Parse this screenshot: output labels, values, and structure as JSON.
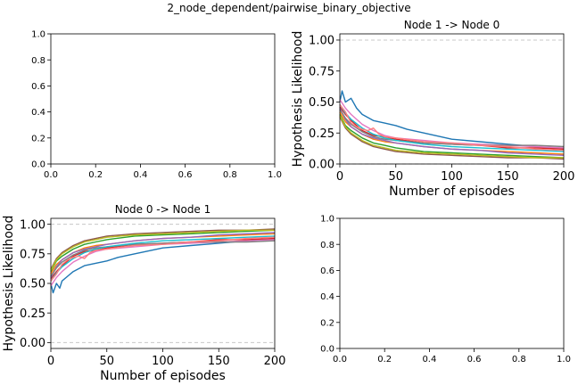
{
  "figure": {
    "suptitle": "2_node_dependent/pairwise_binary_objective"
  },
  "chart_data": [
    {
      "id": "top-left",
      "type": "line",
      "title": "",
      "xlabel": "",
      "ylabel": "",
      "xlim": [
        0,
        1
      ],
      "ylim": [
        0,
        1
      ],
      "xticks": [
        0.0,
        0.2,
        0.4,
        0.6,
        0.8,
        1.0
      ],
      "xtick_labels": [
        "0.0",
        "0.2",
        "0.4",
        "0.6",
        "0.8",
        "1.0"
      ],
      "yticks": [
        0.0,
        0.2,
        0.4,
        0.6,
        0.8,
        1.0
      ],
      "ytick_labels": [
        "0.0",
        "0.2",
        "0.4",
        "0.6",
        "0.8",
        "1.0"
      ],
      "label_size": "small",
      "series": []
    },
    {
      "id": "top-right",
      "type": "line",
      "title": "Node 1 -> Node 0",
      "xlabel": "Number of episodes",
      "ylabel": "Hypothesis Likelihood",
      "xlim": [
        0,
        200
      ],
      "ylim": [
        0,
        1.05
      ],
      "xticks": [
        0,
        50,
        100,
        150,
        200
      ],
      "xtick_labels": [
        "0",
        "50",
        "100",
        "150",
        "200"
      ],
      "yticks": [
        0,
        0.25,
        0.5,
        0.75,
        1.0
      ],
      "ytick_labels": [
        "0.00",
        "0.25",
        "0.50",
        "0.75",
        "1.00"
      ],
      "hlines": [
        0,
        1
      ],
      "label_size": "large",
      "series": [
        {
          "color": "#1f77b4",
          "x": [
            0,
            2,
            5,
            10,
            15,
            20,
            30,
            40,
            50,
            60,
            75,
            100,
            125,
            150,
            175,
            200
          ],
          "y": [
            0.5,
            0.59,
            0.5,
            0.53,
            0.45,
            0.4,
            0.35,
            0.33,
            0.31,
            0.28,
            0.25,
            0.2,
            0.18,
            0.16,
            0.14,
            0.12
          ]
        },
        {
          "color": "#ff7f0e",
          "x": [
            0,
            5,
            10,
            20,
            30,
            40,
            50,
            75,
            100,
            125,
            150,
            175,
            200
          ],
          "y": [
            0.42,
            0.34,
            0.3,
            0.24,
            0.2,
            0.18,
            0.17,
            0.14,
            0.12,
            0.11,
            0.1,
            0.09,
            0.08
          ]
        },
        {
          "color": "#2ca02c",
          "x": [
            0,
            5,
            10,
            20,
            30,
            40,
            50,
            75,
            100,
            125,
            150,
            175,
            200
          ],
          "y": [
            0.4,
            0.31,
            0.27,
            0.21,
            0.17,
            0.15,
            0.13,
            0.1,
            0.09,
            0.08,
            0.07,
            0.06,
            0.05
          ]
        },
        {
          "color": "#d62728",
          "x": [
            0,
            5,
            10,
            20,
            30,
            40,
            50,
            75,
            100,
            125,
            150,
            175,
            200
          ],
          "y": [
            0.46,
            0.4,
            0.35,
            0.27,
            0.23,
            0.22,
            0.2,
            0.17,
            0.16,
            0.15,
            0.13,
            0.13,
            0.12
          ]
        },
        {
          "color": "#9467bd",
          "x": [
            0,
            5,
            10,
            20,
            30,
            40,
            50,
            75,
            100,
            125,
            150,
            175,
            200
          ],
          "y": [
            0.45,
            0.36,
            0.3,
            0.24,
            0.21,
            0.19,
            0.17,
            0.14,
            0.12,
            0.11,
            0.09,
            0.08,
            0.07
          ]
        },
        {
          "color": "#8c564b",
          "x": [
            0,
            5,
            10,
            20,
            30,
            40,
            50,
            75,
            100,
            125,
            150,
            175,
            200
          ],
          "y": [
            0.38,
            0.29,
            0.24,
            0.18,
            0.14,
            0.12,
            0.1,
            0.08,
            0.07,
            0.06,
            0.05,
            0.05,
            0.04
          ]
        },
        {
          "color": "#e377c2",
          "x": [
            0,
            5,
            10,
            20,
            30,
            40,
            50,
            75,
            100,
            125,
            150,
            175,
            200
          ],
          "y": [
            0.52,
            0.45,
            0.4,
            0.32,
            0.27,
            0.23,
            0.21,
            0.19,
            0.17,
            0.16,
            0.15,
            0.14,
            0.13
          ]
        },
        {
          "color": "#7f7f7f",
          "x": [
            0,
            5,
            10,
            20,
            30,
            40,
            50,
            75,
            100,
            125,
            150,
            175,
            200
          ],
          "y": [
            0.44,
            0.37,
            0.32,
            0.26,
            0.22,
            0.2,
            0.19,
            0.17,
            0.16,
            0.15,
            0.15,
            0.15,
            0.14
          ]
        },
        {
          "color": "#bcbd22",
          "x": [
            0,
            5,
            10,
            20,
            30,
            40,
            50,
            75,
            100,
            125,
            150,
            175,
            200
          ],
          "y": [
            0.39,
            0.3,
            0.25,
            0.19,
            0.15,
            0.13,
            0.11,
            0.09,
            0.08,
            0.07,
            0.06,
            0.05,
            0.05
          ]
        },
        {
          "color": "#17becf",
          "x": [
            0,
            5,
            10,
            20,
            30,
            40,
            50,
            75,
            100,
            125,
            150,
            175,
            200
          ],
          "y": [
            0.48,
            0.41,
            0.36,
            0.29,
            0.24,
            0.21,
            0.19,
            0.16,
            0.14,
            0.13,
            0.12,
            0.11,
            0.1
          ]
        },
        {
          "color": "#ff7f7f",
          "x": [
            0,
            5,
            10,
            15,
            20,
            25,
            30,
            35,
            40,
            50,
            75,
            100,
            125,
            150,
            175,
            200
          ],
          "y": [
            0.48,
            0.42,
            0.33,
            0.3,
            0.28,
            0.27,
            0.29,
            0.24,
            0.22,
            0.21,
            0.18,
            0.17,
            0.15,
            0.14,
            0.12,
            0.11
          ]
        }
      ]
    },
    {
      "id": "bottom-left",
      "type": "line",
      "title": "Node 0 -> Node 1",
      "xlabel": "Number of episodes",
      "ylabel": "Hypothesis Likelihood",
      "xlim": [
        0,
        200
      ],
      "ylim": [
        -0.05,
        1.05
      ],
      "xticks": [
        0,
        50,
        100,
        150,
        200
      ],
      "xtick_labels": [
        "0",
        "50",
        "100",
        "150",
        "200"
      ],
      "yticks": [
        0,
        0.25,
        0.5,
        0.75,
        1.0
      ],
      "ytick_labels": [
        "0.00",
        "0.25",
        "0.50",
        "0.75",
        "1.00"
      ],
      "hlines": [
        0,
        1
      ],
      "label_size": "large",
      "series": [
        {
          "color": "#1f77b4",
          "x": [
            0,
            2,
            5,
            8,
            10,
            15,
            20,
            30,
            40,
            50,
            60,
            75,
            100,
            125,
            150,
            175,
            200
          ],
          "y": [
            0.5,
            0.42,
            0.5,
            0.46,
            0.52,
            0.56,
            0.6,
            0.65,
            0.67,
            0.69,
            0.72,
            0.75,
            0.8,
            0.82,
            0.84,
            0.86,
            0.88
          ]
        },
        {
          "color": "#ff7f0e",
          "x": [
            0,
            5,
            10,
            20,
            30,
            40,
            50,
            75,
            100,
            125,
            150,
            175,
            200
          ],
          "y": [
            0.58,
            0.66,
            0.7,
            0.76,
            0.8,
            0.82,
            0.83,
            0.86,
            0.88,
            0.89,
            0.9,
            0.91,
            0.92
          ]
        },
        {
          "color": "#2ca02c",
          "x": [
            0,
            5,
            10,
            20,
            30,
            40,
            50,
            75,
            100,
            125,
            150,
            175,
            200
          ],
          "y": [
            0.6,
            0.69,
            0.73,
            0.79,
            0.83,
            0.85,
            0.87,
            0.9,
            0.91,
            0.92,
            0.93,
            0.94,
            0.95
          ]
        },
        {
          "color": "#d62728",
          "x": [
            0,
            5,
            10,
            20,
            30,
            40,
            50,
            75,
            100,
            125,
            150,
            175,
            200
          ],
          "y": [
            0.54,
            0.6,
            0.65,
            0.73,
            0.77,
            0.78,
            0.8,
            0.83,
            0.84,
            0.85,
            0.87,
            0.87,
            0.88
          ]
        },
        {
          "color": "#9467bd",
          "x": [
            0,
            5,
            10,
            20,
            30,
            40,
            50,
            75,
            100,
            125,
            150,
            175,
            200
          ],
          "y": [
            0.55,
            0.64,
            0.7,
            0.76,
            0.79,
            0.81,
            0.83,
            0.86,
            0.88,
            0.89,
            0.91,
            0.92,
            0.93
          ]
        },
        {
          "color": "#8c564b",
          "x": [
            0,
            5,
            10,
            20,
            30,
            40,
            50,
            75,
            100,
            125,
            150,
            175,
            200
          ],
          "y": [
            0.62,
            0.71,
            0.76,
            0.82,
            0.86,
            0.88,
            0.9,
            0.92,
            0.93,
            0.94,
            0.95,
            0.95,
            0.96
          ]
        },
        {
          "color": "#e377c2",
          "x": [
            0,
            5,
            10,
            20,
            30,
            40,
            50,
            75,
            100,
            125,
            150,
            175,
            200
          ],
          "y": [
            0.48,
            0.55,
            0.6,
            0.68,
            0.73,
            0.77,
            0.79,
            0.81,
            0.83,
            0.84,
            0.85,
            0.86,
            0.87
          ]
        },
        {
          "color": "#7f7f7f",
          "x": [
            0,
            5,
            10,
            20,
            30,
            40,
            50,
            75,
            100,
            125,
            150,
            175,
            200
          ],
          "y": [
            0.56,
            0.63,
            0.68,
            0.74,
            0.78,
            0.8,
            0.81,
            0.83,
            0.84,
            0.85,
            0.85,
            0.85,
            0.86
          ]
        },
        {
          "color": "#bcbd22",
          "x": [
            0,
            5,
            10,
            20,
            30,
            40,
            50,
            75,
            100,
            125,
            150,
            175,
            200
          ],
          "y": [
            0.61,
            0.7,
            0.75,
            0.81,
            0.85,
            0.87,
            0.89,
            0.91,
            0.92,
            0.93,
            0.94,
            0.95,
            0.95
          ]
        },
        {
          "color": "#17becf",
          "x": [
            0,
            5,
            10,
            20,
            30,
            40,
            50,
            75,
            100,
            125,
            150,
            175,
            200
          ],
          "y": [
            0.52,
            0.59,
            0.64,
            0.71,
            0.76,
            0.79,
            0.81,
            0.84,
            0.86,
            0.87,
            0.88,
            0.89,
            0.9
          ]
        },
        {
          "color": "#ff7f7f",
          "x": [
            0,
            5,
            10,
            15,
            20,
            25,
            30,
            35,
            40,
            50,
            75,
            100,
            125,
            150,
            175,
            200
          ],
          "y": [
            0.52,
            0.58,
            0.66,
            0.7,
            0.72,
            0.73,
            0.71,
            0.76,
            0.78,
            0.79,
            0.82,
            0.83,
            0.85,
            0.86,
            0.88,
            0.89
          ]
        }
      ]
    },
    {
      "id": "bottom-right",
      "type": "line",
      "title": "",
      "xlabel": "",
      "ylabel": "",
      "xlim": [
        0,
        1
      ],
      "ylim": [
        0,
        1
      ],
      "xticks": [
        0.0,
        0.2,
        0.4,
        0.6,
        0.8,
        1.0
      ],
      "xtick_labels": [
        "0.0",
        "0.2",
        "0.4",
        "0.6",
        "0.8",
        "1.0"
      ],
      "yticks": [
        0.0,
        0.2,
        0.4,
        0.6,
        0.8,
        1.0
      ],
      "ytick_labels": [
        "0.0",
        "0.2",
        "0.4",
        "0.6",
        "0.8",
        "1.0"
      ],
      "label_size": "small",
      "series": []
    }
  ]
}
